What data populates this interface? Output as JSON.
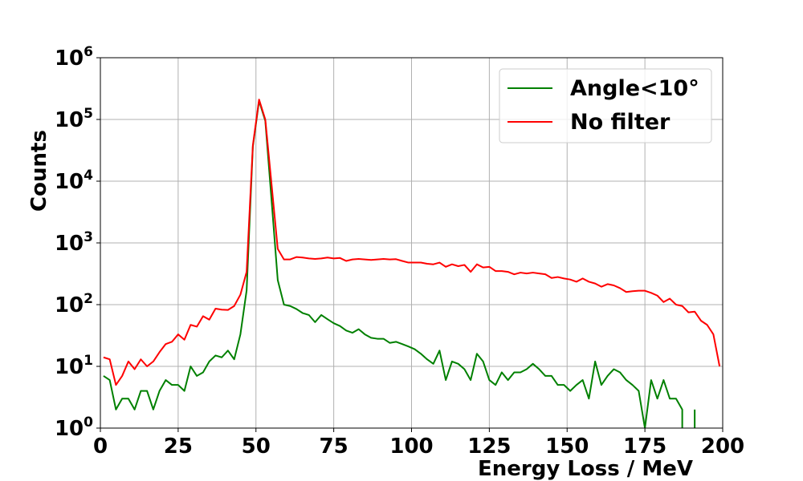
{
  "chart_data": {
    "type": "line",
    "title": "",
    "xlabel": "Energy Loss / MeV",
    "ylabel": "Counts",
    "xlim": [
      0,
      200
    ],
    "ylim": [
      1,
      1000000
    ],
    "yscale": "log",
    "grid": true,
    "legend_position": "top-right",
    "x_ticks": [
      "0",
      "25",
      "50",
      "75",
      "100",
      "125",
      "150",
      "175",
      "200"
    ],
    "y_ticks": [
      {
        "base": "10",
        "exp": "0"
      },
      {
        "base": "10",
        "exp": "1"
      },
      {
        "base": "10",
        "exp": "2"
      },
      {
        "base": "10",
        "exp": "3"
      },
      {
        "base": "10",
        "exp": "4"
      },
      {
        "base": "10",
        "exp": "5"
      },
      {
        "base": "10",
        "exp": "6"
      }
    ],
    "series": [
      {
        "name": "Angle<10°",
        "color": "#008000",
        "points": [
          [
            1,
            7
          ],
          [
            3,
            6
          ],
          [
            5,
            2
          ],
          [
            7,
            3
          ],
          [
            9,
            3
          ],
          [
            11,
            2
          ],
          [
            13,
            4
          ],
          [
            15,
            4
          ],
          [
            17,
            2
          ],
          [
            19,
            4
          ],
          [
            21,
            6
          ],
          [
            23,
            5
          ],
          [
            25,
            5
          ],
          [
            27,
            4
          ],
          [
            29,
            10
          ],
          [
            31,
            7
          ],
          [
            33,
            8
          ],
          [
            35,
            12
          ],
          [
            37,
            15
          ],
          [
            39,
            14
          ],
          [
            41,
            18
          ],
          [
            43,
            13
          ],
          [
            45,
            33
          ],
          [
            47,
            170
          ],
          [
            49,
            36000
          ],
          [
            51,
            200000
          ],
          [
            53,
            95000
          ],
          [
            55,
            5000
          ],
          [
            57,
            250
          ],
          [
            59,
            100
          ],
          [
            61,
            95
          ],
          [
            63,
            85
          ],
          [
            65,
            73
          ],
          [
            67,
            68
          ],
          [
            69,
            52
          ],
          [
            71,
            68
          ],
          [
            73,
            58
          ],
          [
            75,
            50
          ],
          [
            77,
            45
          ],
          [
            79,
            38
          ],
          [
            81,
            35
          ],
          [
            83,
            40
          ],
          [
            85,
            33
          ],
          [
            87,
            29
          ],
          [
            89,
            28
          ],
          [
            91,
            28
          ],
          [
            93,
            24
          ],
          [
            95,
            25
          ],
          [
            97,
            23
          ],
          [
            99,
            21
          ],
          [
            101,
            19
          ],
          [
            103,
            16
          ],
          [
            105,
            13
          ],
          [
            107,
            11
          ],
          [
            109,
            18
          ],
          [
            111,
            6
          ],
          [
            113,
            12
          ],
          [
            115,
            11
          ],
          [
            117,
            9
          ],
          [
            119,
            6
          ],
          [
            121,
            16
          ],
          [
            123,
            12
          ],
          [
            125,
            6
          ],
          [
            127,
            5
          ],
          [
            129,
            8
          ],
          [
            131,
            6
          ],
          [
            133,
            8
          ],
          [
            135,
            8
          ],
          [
            137,
            9
          ],
          [
            139,
            11
          ],
          [
            141,
            9
          ],
          [
            143,
            7
          ],
          [
            145,
            7
          ],
          [
            147,
            5
          ],
          [
            149,
            5
          ],
          [
            151,
            4
          ],
          [
            153,
            5
          ],
          [
            155,
            6
          ],
          [
            157,
            3
          ],
          [
            159,
            12
          ],
          [
            161,
            5
          ],
          [
            163,
            7
          ],
          [
            165,
            9
          ],
          [
            167,
            8
          ],
          [
            169,
            6
          ],
          [
            171,
            5
          ],
          [
            173,
            4
          ],
          [
            175,
            1
          ],
          [
            177,
            6
          ],
          [
            179,
            3
          ],
          [
            181,
            6
          ],
          [
            183,
            3
          ],
          [
            185,
            3
          ],
          [
            187,
            2
          ],
          [
            187,
            1
          ],
          [
            187,
            null
          ],
          [
            191,
            2
          ],
          [
            191,
            1
          ]
        ]
      },
      {
        "name": "No filter",
        "color": "#ff0000",
        "points": [
          [
            1,
            14
          ],
          [
            3,
            13
          ],
          [
            5,
            5
          ],
          [
            7,
            7
          ],
          [
            9,
            12
          ],
          [
            11,
            9
          ],
          [
            13,
            13
          ],
          [
            15,
            10
          ],
          [
            17,
            12
          ],
          [
            19,
            17
          ],
          [
            21,
            23
          ],
          [
            23,
            25
          ],
          [
            25,
            33
          ],
          [
            27,
            27
          ],
          [
            29,
            47
          ],
          [
            31,
            44
          ],
          [
            33,
            65
          ],
          [
            35,
            57
          ],
          [
            37,
            86
          ],
          [
            39,
            83
          ],
          [
            41,
            82
          ],
          [
            43,
            95
          ],
          [
            45,
            145
          ],
          [
            47,
            340
          ],
          [
            49,
            38000
          ],
          [
            51,
            210000
          ],
          [
            53,
            100000
          ],
          [
            55,
            9000
          ],
          [
            57,
            800
          ],
          [
            59,
            540
          ],
          [
            61,
            540
          ],
          [
            63,
            590
          ],
          [
            65,
            580
          ],
          [
            67,
            560
          ],
          [
            69,
            550
          ],
          [
            71,
            560
          ],
          [
            73,
            580
          ],
          [
            75,
            560
          ],
          [
            77,
            570
          ],
          [
            79,
            510
          ],
          [
            81,
            540
          ],
          [
            83,
            550
          ],
          [
            85,
            540
          ],
          [
            87,
            530
          ],
          [
            89,
            540
          ],
          [
            91,
            550
          ],
          [
            93,
            540
          ],
          [
            95,
            545
          ],
          [
            97,
            510
          ],
          [
            99,
            480
          ],
          [
            101,
            480
          ],
          [
            103,
            480
          ],
          [
            105,
            460
          ],
          [
            107,
            450
          ],
          [
            109,
            480
          ],
          [
            111,
            410
          ],
          [
            113,
            450
          ],
          [
            115,
            420
          ],
          [
            117,
            440
          ],
          [
            119,
            340
          ],
          [
            121,
            450
          ],
          [
            123,
            400
          ],
          [
            125,
            410
          ],
          [
            127,
            350
          ],
          [
            129,
            350
          ],
          [
            131,
            340
          ],
          [
            133,
            310
          ],
          [
            135,
            330
          ],
          [
            137,
            320
          ],
          [
            139,
            330
          ],
          [
            141,
            320
          ],
          [
            143,
            310
          ],
          [
            145,
            270
          ],
          [
            147,
            280
          ],
          [
            149,
            265
          ],
          [
            151,
            255
          ],
          [
            153,
            235
          ],
          [
            155,
            265
          ],
          [
            157,
            235
          ],
          [
            159,
            220
          ],
          [
            161,
            195
          ],
          [
            163,
            215
          ],
          [
            165,
            205
          ],
          [
            167,
            185
          ],
          [
            169,
            160
          ],
          [
            171,
            165
          ],
          [
            173,
            168
          ],
          [
            175,
            168
          ],
          [
            177,
            155
          ],
          [
            179,
            140
          ],
          [
            181,
            110
          ],
          [
            183,
            125
          ],
          [
            185,
            100
          ],
          [
            187,
            95
          ],
          [
            189,
            75
          ],
          [
            191,
            77
          ],
          [
            193,
            55
          ],
          [
            195,
            47
          ],
          [
            197,
            33
          ],
          [
            199,
            10
          ]
        ]
      }
    ]
  }
}
